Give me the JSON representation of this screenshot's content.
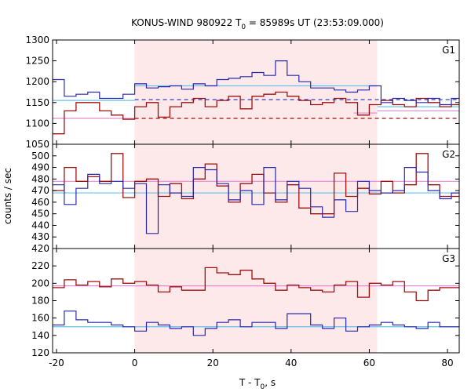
{
  "chart_data": {
    "type": "line",
    "title_parts": [
      "KONUS-WIND 980922 T",
      "0",
      " = 85989s UT (23:53:09.000)"
    ],
    "xlabel_parts": [
      "T - T",
      "0",
      ", s"
    ],
    "ylabel": "counts / sec",
    "xlim": [
      -21,
      83
    ],
    "xticks": [
      -20,
      0,
      20,
      40,
      60,
      80
    ],
    "highlight_interval": [
      0,
      62
    ],
    "colors": {
      "highlight": "#fde8ea",
      "dark_red": "#a01010",
      "blue": "#2828b0",
      "cyan": "#63c3ea",
      "pink": "#e68ad6"
    },
    "panels": [
      {
        "label": "G1",
        "ylim": [
          1050,
          1300
        ],
        "yticks": [
          1000,
          1050,
          1100,
          1150,
          1200,
          1250,
          1300
        ],
        "blue_series": {
          "x": [
            -21,
            -18,
            -15,
            -12,
            -9,
            -6,
            -3,
            0,
            3,
            6,
            9,
            12,
            15,
            18,
            21,
            24,
            27,
            30,
            33,
            36,
            39,
            42,
            45,
            48,
            51,
            54,
            57,
            60,
            63,
            66,
            69,
            72,
            75,
            78,
            81
          ],
          "y": [
            1205,
            1165,
            1170,
            1175,
            1160,
            1160,
            1170,
            1195,
            1185,
            1188,
            1190,
            1182,
            1195,
            1190,
            1205,
            1208,
            1212,
            1222,
            1215,
            1250,
            1215,
            1200,
            1185,
            1185,
            1180,
            1175,
            1180,
            1190,
            1150,
            1160,
            1155,
            1150,
            1160,
            1145,
            1160
          ]
        },
        "red_series": {
          "x": [
            -21,
            -18,
            -15,
            -12,
            -9,
            -6,
            -3,
            0,
            3,
            6,
            9,
            12,
            15,
            18,
            21,
            24,
            27,
            30,
            33,
            36,
            39,
            42,
            45,
            48,
            51,
            54,
            57,
            60,
            63,
            66,
            69,
            72,
            75,
            78,
            81
          ],
          "y": [
            1075,
            1130,
            1150,
            1150,
            1130,
            1120,
            1110,
            1140,
            1150,
            1115,
            1140,
            1150,
            1160,
            1140,
            1155,
            1165,
            1135,
            1165,
            1170,
            1175,
            1165,
            1155,
            1145,
            1150,
            1160,
            1150,
            1120,
            1145,
            1155,
            1145,
            1140,
            1160,
            1150,
            1140,
            1145
          ]
        },
        "segments": [
          {
            "color": "cyan",
            "style": "solid",
            "x": [
              -21,
              0
            ],
            "y": 1155
          },
          {
            "color": "cyan",
            "style": "solid",
            "x": [
              0,
              62
            ],
            "y": 1190
          },
          {
            "color": "cyan",
            "style": "solid",
            "x": [
              62,
              83
            ],
            "y": 1140
          },
          {
            "color": "pink",
            "style": "solid",
            "x": [
              -21,
              0
            ],
            "y": 1112
          },
          {
            "color": "pink",
            "style": "solid",
            "x": [
              56,
              62
            ],
            "y": 1125
          },
          {
            "color": "pink",
            "style": "solid",
            "x": [
              62,
              83
            ],
            "y": 1130
          },
          {
            "color": "dark_red",
            "style": "dashed",
            "x": [
              0,
              83
            ],
            "y": 1112
          },
          {
            "color": "blue",
            "style": "dashed",
            "x": [
              0,
              83
            ],
            "y": 1157
          }
        ]
      },
      {
        "label": "G2",
        "ylim": [
          420,
          510
        ],
        "yticks": [
          420,
          430,
          440,
          450,
          460,
          470,
          480,
          490,
          500
        ],
        "blue_series": {
          "x": [
            -21,
            -18,
            -15,
            -12,
            -9,
            -6,
            -3,
            0,
            3,
            6,
            9,
            12,
            15,
            18,
            21,
            24,
            27,
            30,
            33,
            36,
            39,
            42,
            45,
            48,
            51,
            54,
            57,
            60,
            63,
            66,
            69,
            72,
            75,
            78,
            81
          ],
          "y": [
            475,
            458,
            472,
            484,
            476,
            478,
            472,
            476,
            433,
            475,
            468,
            465,
            490,
            488,
            476,
            462,
            470,
            458,
            490,
            462,
            478,
            472,
            456,
            447,
            462,
            452,
            478,
            470,
            468,
            470,
            490,
            486,
            470,
            463,
            468
          ]
        },
        "red_series": {
          "x": [
            -21,
            -18,
            -15,
            -12,
            -9,
            -6,
            -3,
            0,
            3,
            6,
            9,
            12,
            15,
            18,
            21,
            24,
            27,
            30,
            33,
            36,
            39,
            42,
            45,
            48,
            51,
            54,
            57,
            60,
            63,
            66,
            69,
            72,
            75,
            78,
            81
          ],
          "y": [
            470,
            490,
            478,
            482,
            478,
            502,
            464,
            478,
            480,
            465,
            476,
            463,
            480,
            493,
            474,
            460,
            476,
            484,
            468,
            460,
            475,
            455,
            450,
            450,
            485,
            465,
            472,
            467,
            478,
            468,
            475,
            502,
            475,
            465,
            465
          ]
        },
        "segments": [
          {
            "color": "cyan",
            "style": "solid",
            "x": [
              -21,
              83
            ],
            "y": 468
          },
          {
            "color": "pink",
            "style": "solid",
            "x": [
              -21,
              83
            ],
            "y": 478
          }
        ]
      },
      {
        "label": "G3",
        "ylim": [
          120,
          240
        ],
        "yticks": [
          120,
          140,
          160,
          180,
          200,
          220
        ],
        "blue_series": {
          "x": [
            -21,
            -18,
            -15,
            -12,
            -9,
            -6,
            -3,
            0,
            3,
            6,
            9,
            12,
            15,
            18,
            21,
            24,
            27,
            30,
            33,
            36,
            39,
            42,
            45,
            48,
            51,
            54,
            57,
            60,
            63,
            66,
            69,
            72,
            75,
            78,
            81
          ],
          "y": [
            152,
            168,
            158,
            155,
            155,
            152,
            150,
            145,
            155,
            152,
            148,
            150,
            140,
            148,
            155,
            158,
            150,
            155,
            155,
            148,
            165,
            165,
            152,
            148,
            160,
            145,
            150,
            152,
            155,
            152,
            150,
            148,
            155,
            150,
            150
          ]
        },
        "red_series": {
          "x": [
            -21,
            -18,
            -15,
            -12,
            -9,
            -6,
            -3,
            0,
            3,
            6,
            9,
            12,
            15,
            18,
            21,
            24,
            27,
            30,
            33,
            36,
            39,
            42,
            45,
            48,
            51,
            54,
            57,
            60,
            63,
            66,
            69,
            72,
            75,
            78,
            81
          ],
          "y": [
            195,
            204,
            198,
            202,
            196,
            205,
            200,
            202,
            198,
            190,
            196,
            192,
            192,
            218,
            212,
            210,
            215,
            205,
            200,
            192,
            198,
            195,
            192,
            190,
            198,
            202,
            184,
            200,
            198,
            202,
            190,
            180,
            192,
            195,
            195
          ]
        },
        "segments": [
          {
            "color": "cyan",
            "style": "solid",
            "x": [
              -21,
              83
            ],
            "y": 150
          },
          {
            "color": "pink",
            "style": "solid",
            "x": [
              -21,
              83
            ],
            "y": 197
          }
        ]
      }
    ]
  }
}
